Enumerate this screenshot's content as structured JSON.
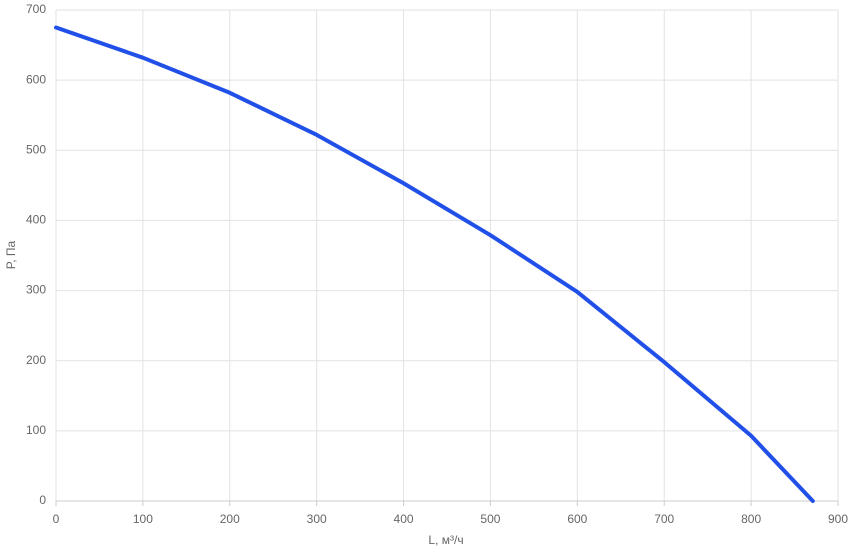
{
  "chart_data": {
    "type": "line",
    "x_label": "L, м³/ч",
    "y_label": "P, Па",
    "series": [
      {
        "color": "#2150e8",
        "x": [
          0,
          100,
          200,
          300,
          400,
          500,
          600,
          700,
          800,
          871
        ],
        "values": [
          675,
          632,
          582,
          522,
          453,
          379,
          298,
          198,
          93,
          0
        ]
      }
    ],
    "xlim": [
      0,
      900
    ],
    "xticks": [
      0,
      100,
      200,
      300,
      400,
      500,
      600,
      700,
      800,
      900
    ],
    "ylim": [
      0,
      700
    ],
    "yticks": [
      0,
      100,
      200,
      300,
      400,
      500,
      600,
      700
    ],
    "grid": true
  }
}
